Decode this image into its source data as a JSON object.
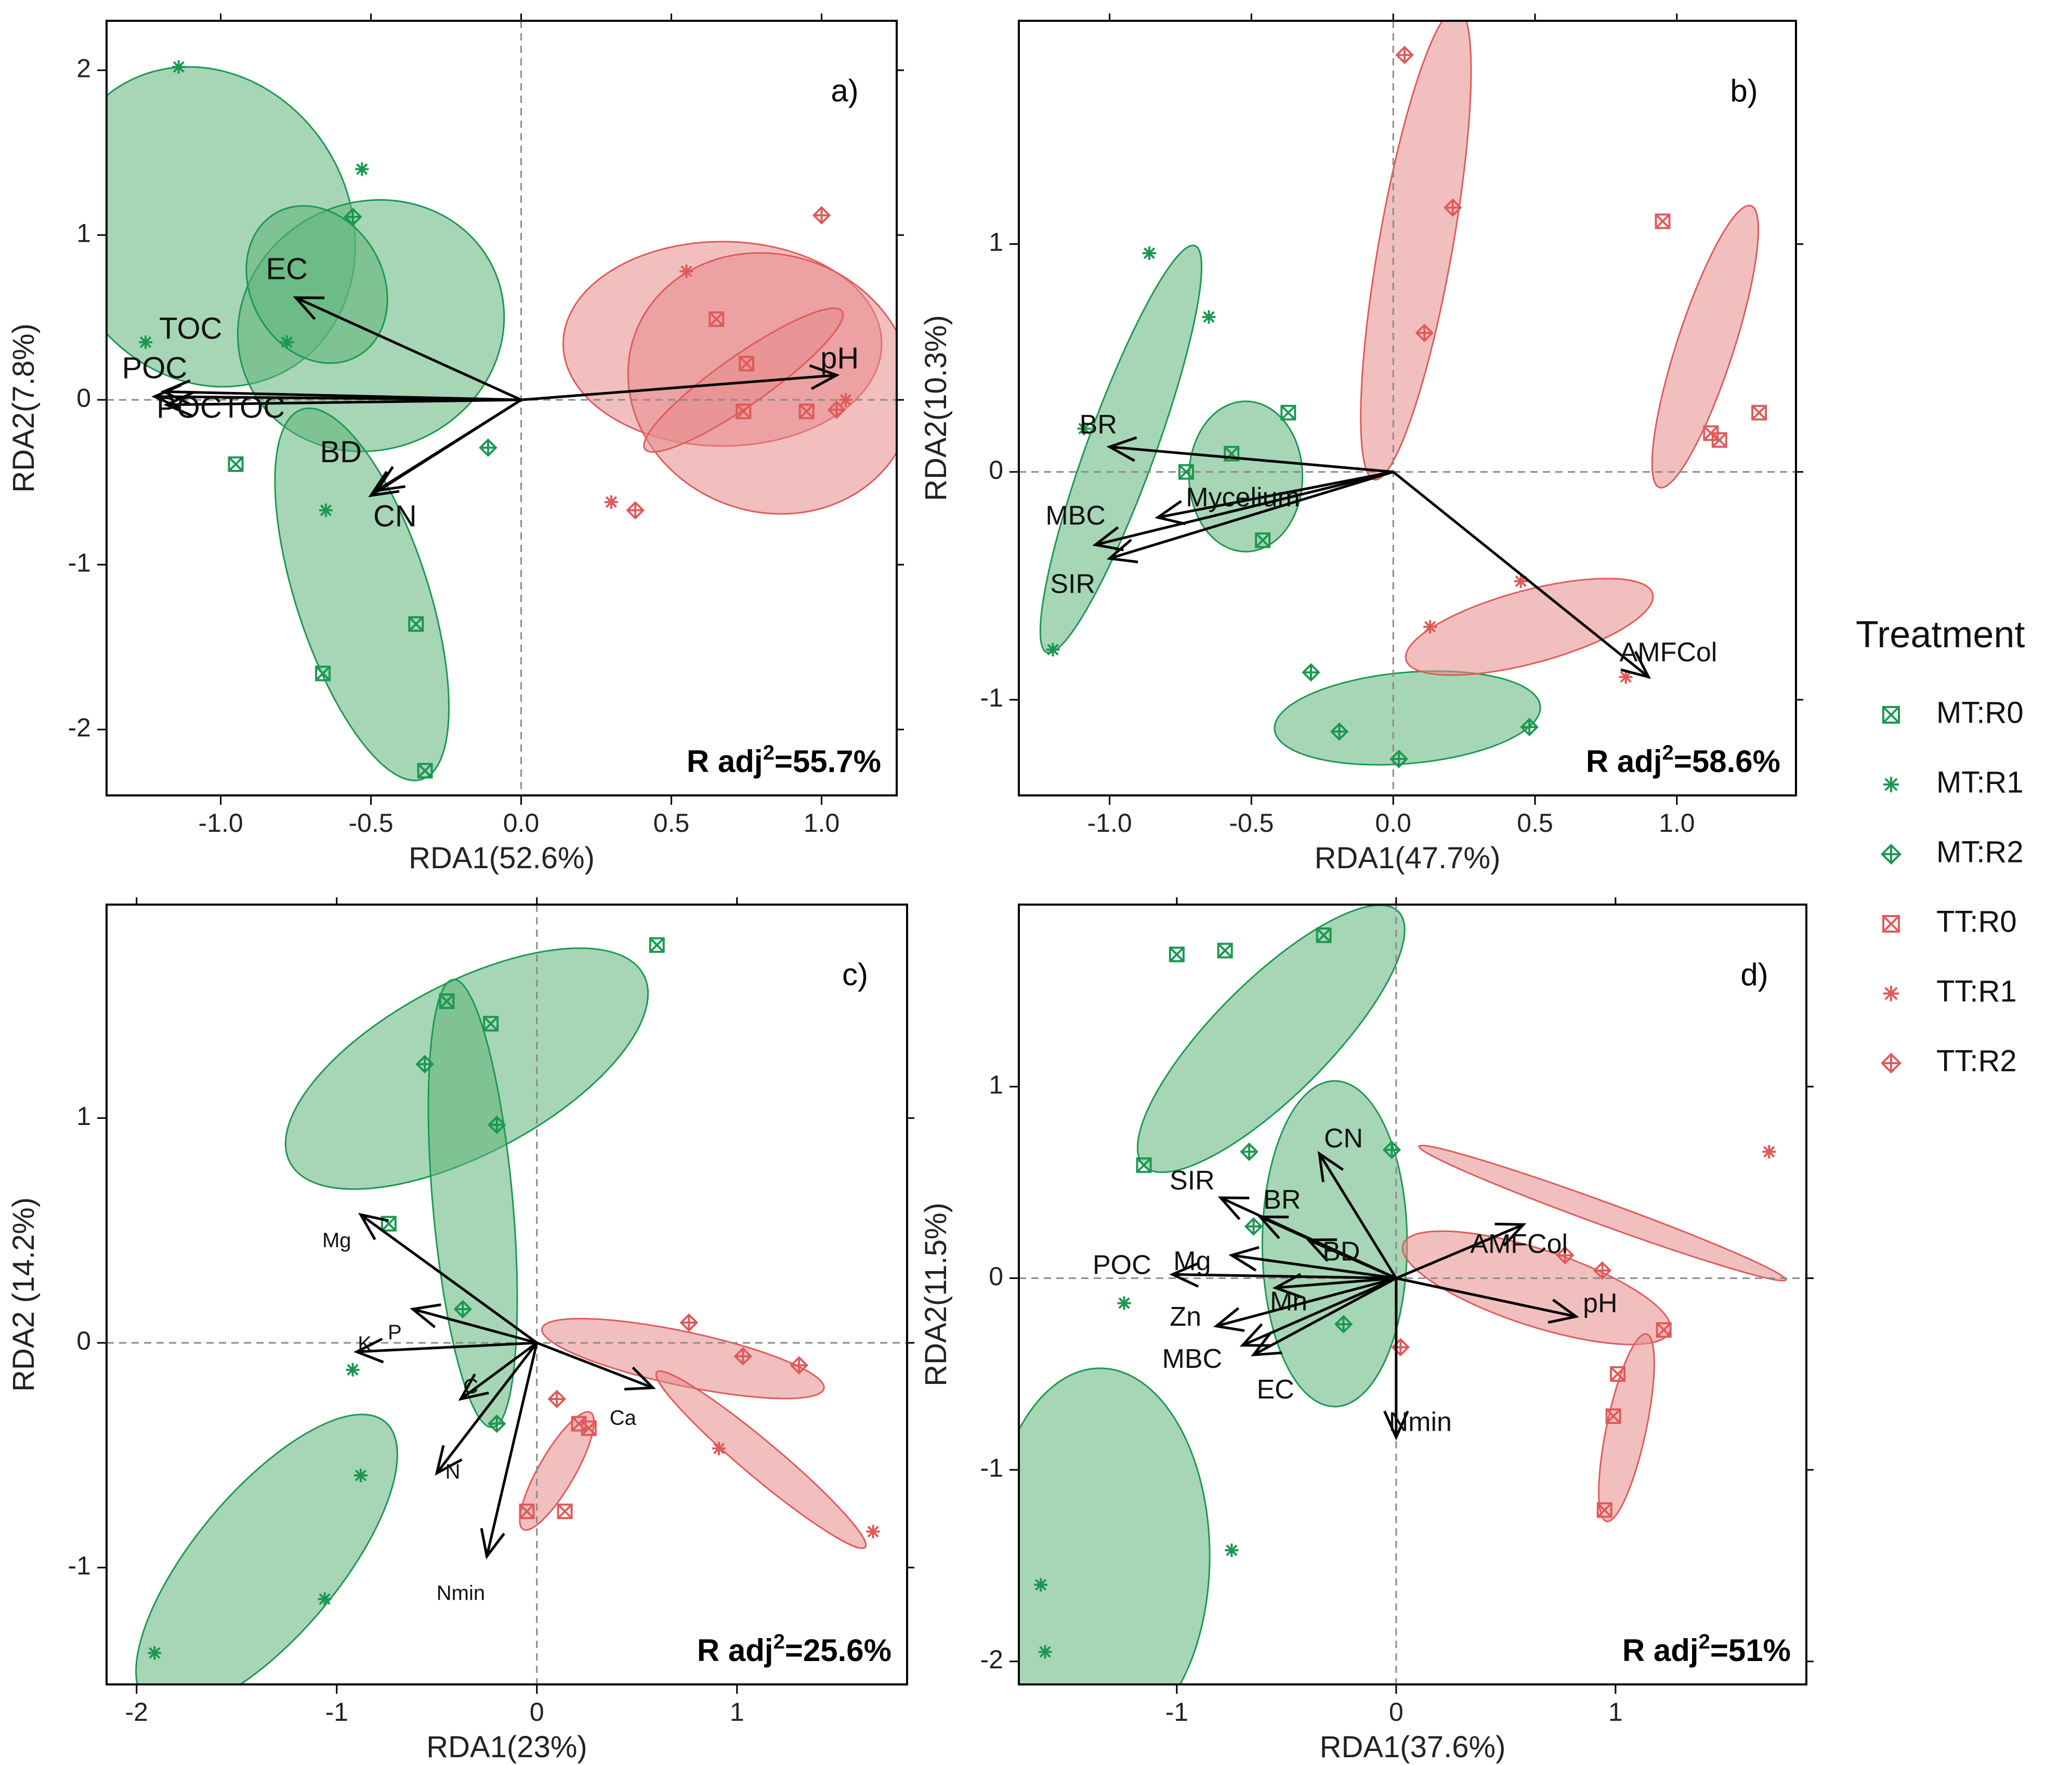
{
  "legend": {
    "title": "Treatment",
    "items": [
      {
        "label": "MT:R0",
        "color": "#1a9850",
        "marker": "boxx"
      },
      {
        "label": "MT:R1",
        "color": "#1a9850",
        "marker": "star"
      },
      {
        "label": "MT:R2",
        "color": "#1a9850",
        "marker": "diamondplus"
      },
      {
        "label": "TT:R0",
        "color": "#e05a5a",
        "marker": "boxx"
      },
      {
        "label": "TT:R1",
        "color": "#e05a5a",
        "marker": "star"
      },
      {
        "label": "TT:R2",
        "color": "#e05a5a",
        "marker": "diamondplus"
      }
    ]
  },
  "colors": {
    "MT": "#1a9850",
    "TT": "#e05a5a",
    "MT_fill": "#5fb57a",
    "TT_fill": "#e88a8a",
    "arrow": "#000000"
  },
  "chart_data": [
    {
      "panel": "a)",
      "type": "scatter",
      "xlabel": "RDA1(52.6%)",
      "ylabel": "RDA2(7.8%)",
      "radj": {
        "prefix": "R adj",
        "sup": "2",
        "value": "=55.7%"
      },
      "xlim": [
        -1.38,
        1.25
      ],
      "ylim": [
        -2.4,
        2.3
      ],
      "xticks": [
        -1.0,
        -0.5,
        0.0,
        0.5,
        1.0
      ],
      "xtick_labels": [
        "-1.0",
        "-0.5",
        "0.0",
        "0.5",
        "1.0"
      ],
      "yticks": [
        -2,
        -1,
        0,
        1,
        2
      ],
      "ytick_labels": [
        "-2",
        "-1",
        "0",
        "1",
        "2"
      ],
      "vector_font": 58,
      "ellipses": [
        {
          "group": "MT",
          "cx": -1.05,
          "cy": 1.05,
          "rx": 0.48,
          "ry": 1.0,
          "angle": -30
        },
        {
          "group": "MT",
          "cx": -0.5,
          "cy": 0.45,
          "rx": 0.45,
          "ry": 0.75,
          "angle": -25
        },
        {
          "group": "MT",
          "cx": -0.53,
          "cy": -1.18,
          "rx": 0.22,
          "ry": 1.18,
          "angle": -18
        },
        {
          "group": "MT",
          "cx": -0.68,
          "cy": 0.7,
          "rx": 0.22,
          "ry": 0.5,
          "angle": -30
        },
        {
          "group": "TT",
          "cx": 0.67,
          "cy": 0.34,
          "rx": 0.53,
          "ry": 0.62,
          "angle": 0
        },
        {
          "group": "TT",
          "cx": 0.83,
          "cy": 0.1,
          "rx": 0.48,
          "ry": 0.78,
          "angle": 20
        },
        {
          "group": "TT",
          "cx": 0.74,
          "cy": 0.12,
          "rx": 0.4,
          "ry": 0.15,
          "angle": -35
        }
      ],
      "points": [
        {
          "t": "MT:R1",
          "x": -1.14,
          "y": 2.02
        },
        {
          "t": "MT:R1",
          "x": -0.53,
          "y": 1.4
        },
        {
          "t": "MT:R2",
          "x": -0.56,
          "y": 1.11
        },
        {
          "t": "MT:R1",
          "x": -1.25,
          "y": 0.35
        },
        {
          "t": "MT:R1",
          "x": -0.78,
          "y": 0.35
        },
        {
          "t": "MT:R2",
          "x": -0.11,
          "y": -0.29
        },
        {
          "t": "MT:R0",
          "x": -0.95,
          "y": -0.39
        },
        {
          "t": "MT:R1",
          "x": -0.65,
          "y": -0.67
        },
        {
          "t": "MT:R0",
          "x": -0.35,
          "y": -1.36
        },
        {
          "t": "MT:R0",
          "x": -0.66,
          "y": -1.66
        },
        {
          "t": "MT:R0",
          "x": -0.32,
          "y": -2.25
        },
        {
          "t": "TT:R2",
          "x": 1.0,
          "y": 1.12
        },
        {
          "t": "TT:R1",
          "x": 0.55,
          "y": 0.78
        },
        {
          "t": "TT:R0",
          "x": 0.65,
          "y": 0.49
        },
        {
          "t": "TT:R0",
          "x": 0.75,
          "y": 0.22
        },
        {
          "t": "TT:R0",
          "x": 0.74,
          "y": -0.07
        },
        {
          "t": "TT:R0",
          "x": 0.95,
          "y": -0.07
        },
        {
          "t": "TT:R2",
          "x": 1.05,
          "y": -0.06
        },
        {
          "t": "TT:R1",
          "x": 1.08,
          "y": 0.0
        },
        {
          "t": "TT:R1",
          "x": 0.3,
          "y": -0.62
        },
        {
          "t": "TT:R2",
          "x": 0.38,
          "y": -0.67
        }
      ],
      "vectors": [
        {
          "label": "EC",
          "x": -0.75,
          "y": 0.62,
          "lx": -0.78,
          "ly": 0.78
        },
        {
          "label": "TOC",
          "x": -1.19,
          "y": 0.05,
          "lx": -1.1,
          "ly": 0.42
        },
        {
          "label": "POC",
          "x": -1.22,
          "y": 0.02,
          "lx": -1.22,
          "ly": 0.18
        },
        {
          "label": "POCTOC",
          "x": -1.18,
          "y": -0.03,
          "lx": -1.0,
          "ly": -0.06
        },
        {
          "label": "BD",
          "x": -0.48,
          "y": -0.55,
          "lx": -0.6,
          "ly": -0.33
        },
        {
          "label": "CN",
          "x": -0.5,
          "y": -0.58,
          "lx": -0.42,
          "ly": -0.72
        },
        {
          "label": "pH",
          "x": 1.05,
          "y": 0.15,
          "lx": 1.06,
          "ly": 0.24
        }
      ]
    },
    {
      "panel": "b)",
      "type": "scatter",
      "xlabel": "RDA1(47.7%)",
      "ylabel": "RDA2(10.3%)",
      "radj": {
        "prefix": "R adj",
        "sup": "2",
        "value": "=58.6%"
      },
      "xlim": [
        -1.32,
        1.42
      ],
      "ylim": [
        -1.42,
        1.98
      ],
      "xticks": [
        -1.0,
        -0.5,
        0.0,
        0.5,
        1.0
      ],
      "xtick_labels": [
        "-1.0",
        "-0.5",
        "0.0",
        "0.5",
        "1.0"
      ],
      "yticks": [
        -1,
        0,
        1
      ],
      "ytick_labels": [
        "-1",
        "0",
        "1"
      ],
      "vector_font": 52,
      "ellipses": [
        {
          "group": "MT",
          "cx": -0.96,
          "cy": 0.1,
          "rx": 0.12,
          "ry": 0.95,
          "angle": 20
        },
        {
          "group": "MT",
          "cx": -0.52,
          "cy": -0.02,
          "rx": 0.2,
          "ry": 0.33,
          "angle": 0
        },
        {
          "group": "MT",
          "cx": 0.05,
          "cy": -1.08,
          "rx": 0.47,
          "ry": 0.2,
          "angle": -5
        },
        {
          "group": "TT",
          "cx": 0.08,
          "cy": 1.0,
          "rx": 0.13,
          "ry": 1.05,
          "angle": 10
        },
        {
          "group": "TT",
          "cx": 1.1,
          "cy": 0.55,
          "rx": 0.1,
          "ry": 0.65,
          "angle": 18
        },
        {
          "group": "TT",
          "cx": 0.48,
          "cy": -0.68,
          "rx": 0.45,
          "ry": 0.16,
          "angle": -15
        }
      ],
      "points": [
        {
          "t": "MT:R1",
          "x": -0.86,
          "y": 0.96
        },
        {
          "t": "MT:R1",
          "x": -0.65,
          "y": 0.68
        },
        {
          "t": "MT:R1",
          "x": -1.09,
          "y": 0.19
        },
        {
          "t": "MT:R1",
          "x": -1.2,
          "y": -0.78
        },
        {
          "t": "MT:R0",
          "x": -0.37,
          "y": 0.26
        },
        {
          "t": "MT:R0",
          "x": -0.57,
          "y": 0.08
        },
        {
          "t": "MT:R0",
          "x": -0.73,
          "y": 0.0
        },
        {
          "t": "MT:R0",
          "x": -0.46,
          "y": -0.3
        },
        {
          "t": "MT:R2",
          "x": -0.29,
          "y": -0.88
        },
        {
          "t": "MT:R2",
          "x": -0.19,
          "y": -1.14
        },
        {
          "t": "MT:R2",
          "x": 0.02,
          "y": -1.26
        },
        {
          "t": "MT:R2",
          "x": 0.48,
          "y": -1.12
        },
        {
          "t": "TT:R2",
          "x": 0.04,
          "y": 1.83
        },
        {
          "t": "TT:R2",
          "x": 0.21,
          "y": 1.16
        },
        {
          "t": "TT:R2",
          "x": 0.11,
          "y": 0.61
        },
        {
          "t": "TT:R0",
          "x": 0.95,
          "y": 1.1
        },
        {
          "t": "TT:R0",
          "x": 1.12,
          "y": 0.17
        },
        {
          "t": "TT:R0",
          "x": 1.15,
          "y": 0.14
        },
        {
          "t": "TT:R0",
          "x": 1.29,
          "y": 0.26
        },
        {
          "t": "TT:R1",
          "x": 0.45,
          "y": -0.48
        },
        {
          "t": "TT:R1",
          "x": 0.13,
          "y": -0.68
        },
        {
          "t": "TT:R1",
          "x": 0.82,
          "y": -0.9
        }
      ],
      "vectors": [
        {
          "label": "BR",
          "x": -1.0,
          "y": 0.11,
          "lx": -1.04,
          "ly": 0.2
        },
        {
          "label": "Mycelium",
          "x": -0.83,
          "y": -0.2,
          "lx": -0.53,
          "ly": -0.12
        },
        {
          "label": "MBC",
          "x": -1.05,
          "y": -0.32,
          "lx": -1.12,
          "ly": -0.2
        },
        {
          "label": "SIR",
          "x": -1.0,
          "y": -0.38,
          "lx": -1.13,
          "ly": -0.5
        },
        {
          "label": "AMFCol",
          "x": 0.9,
          "y": -0.9,
          "lx": 0.97,
          "ly": -0.8
        }
      ]
    },
    {
      "panel": "c)",
      "type": "scatter",
      "xlabel": "RDA1(23%)",
      "ylabel": "RDA2 (14.2%)",
      "radj": {
        "prefix": "R adj",
        "sup": "2",
        "value": "=25.6%"
      },
      "xlim": [
        -2.15,
        1.85
      ],
      "ylim": [
        -1.52,
        1.95
      ],
      "xticks": [
        -2,
        -1,
        0,
        1
      ],
      "xtick_labels": [
        "-2",
        "-1",
        "0",
        "1"
      ],
      "yticks": [
        -1,
        0,
        1
      ],
      "ytick_labels": [
        "-1",
        "0",
        "1"
      ],
      "vector_font": 40,
      "ellipses": [
        {
          "group": "MT",
          "cx": -0.35,
          "cy": 1.22,
          "rx": 1.0,
          "ry": 0.38,
          "angle": -28
        },
        {
          "group": "MT",
          "cx": -0.32,
          "cy": 0.62,
          "rx": 0.2,
          "ry": 1.0,
          "angle": -5
        },
        {
          "group": "MT",
          "cx": -1.35,
          "cy": -0.98,
          "rx": 0.36,
          "ry": 0.82,
          "angle": 40
        },
        {
          "group": "TT",
          "cx": 0.73,
          "cy": -0.07,
          "rx": 0.72,
          "ry": 0.12,
          "angle": 12
        },
        {
          "group": "TT",
          "cx": 1.12,
          "cy": -0.52,
          "rx": 0.68,
          "ry": 0.08,
          "angle": 40
        },
        {
          "group": "TT",
          "cx": 0.1,
          "cy": -0.57,
          "rx": 0.09,
          "ry": 0.3,
          "angle": 30
        }
      ],
      "points": [
        {
          "t": "MT:R0",
          "x": 0.6,
          "y": 1.77
        },
        {
          "t": "MT:R0",
          "x": -0.45,
          "y": 1.52
        },
        {
          "t": "MT:R0",
          "x": -0.23,
          "y": 1.42
        },
        {
          "t": "MT:R2",
          "x": -0.56,
          "y": 1.24
        },
        {
          "t": "MT:R2",
          "x": -0.2,
          "y": 0.97
        },
        {
          "t": "MT:R0",
          "x": -0.74,
          "y": 0.53
        },
        {
          "t": "MT:R2",
          "x": -0.37,
          "y": 0.15
        },
        {
          "t": "MT:R2",
          "x": -0.2,
          "y": -0.36
        },
        {
          "t": "MT:R1",
          "x": -0.92,
          "y": -0.12
        },
        {
          "t": "MT:R1",
          "x": -0.88,
          "y": -0.59
        },
        {
          "t": "MT:R1",
          "x": -1.06,
          "y": -1.14
        },
        {
          "t": "MT:R1",
          "x": -1.91,
          "y": -1.38
        },
        {
          "t": "TT:R2",
          "x": 0.76,
          "y": 0.09
        },
        {
          "t": "TT:R2",
          "x": 1.31,
          "y": -0.1
        },
        {
          "t": "TT:R2",
          "x": 1.03,
          "y": -0.06
        },
        {
          "t": "TT:R2",
          "x": 0.1,
          "y": -0.25
        },
        {
          "t": "TT:R1",
          "x": 0.91,
          "y": -0.47
        },
        {
          "t": "TT:R1",
          "x": 1.68,
          "y": -0.84
        },
        {
          "t": "TT:R0",
          "x": 0.21,
          "y": -0.36
        },
        {
          "t": "TT:R0",
          "x": 0.26,
          "y": -0.38
        },
        {
          "t": "TT:R0",
          "x": 0.14,
          "y": -0.75
        },
        {
          "t": "TT:R0",
          "x": -0.05,
          "y": -0.75
        }
      ],
      "vectors": [
        {
          "label": "Mg",
          "x": -0.88,
          "y": 0.57,
          "lx": -1.0,
          "ly": 0.45
        },
        {
          "label": "P",
          "x": -0.62,
          "y": 0.15,
          "lx": -0.71,
          "ly": 0.04
        },
        {
          "label": "K",
          "x": -0.9,
          "y": -0.04,
          "lx": -0.86,
          "ly": -0.01
        },
        {
          "label": "C",
          "x": -0.38,
          "y": -0.25,
          "lx": -0.33,
          "ly": -0.2
        },
        {
          "label": "N",
          "x": -0.5,
          "y": -0.58,
          "lx": -0.42,
          "ly": -0.58
        },
        {
          "label": "Nmin",
          "x": -0.25,
          "y": -0.95,
          "lx": -0.38,
          "ly": -1.12
        },
        {
          "label": "Ca",
          "x": 0.58,
          "y": -0.2,
          "lx": 0.43,
          "ly": -0.34
        }
      ]
    },
    {
      "panel": "d)",
      "type": "scatter",
      "xlabel": "RDA1(37.6%)",
      "ylabel": "RDA2(11.5%)",
      "radj": {
        "prefix": "R adj",
        "sup": "2",
        "value": "=51%"
      },
      "xlim": [
        -1.72,
        1.87
      ],
      "ylim": [
        -2.12,
        1.95
      ],
      "xticks": [
        -1,
        0,
        1
      ],
      "xtick_labels": [
        "-1",
        "0",
        "1"
      ],
      "yticks": [
        -2,
        -1,
        0,
        1
      ],
      "ytick_labels": [
        "-2",
        "-1",
        "0",
        "1"
      ],
      "vector_font": 52,
      "ellipses": [
        {
          "group": "MT",
          "cx": -0.57,
          "cy": 1.25,
          "rx": 0.82,
          "ry": 0.3,
          "angle": -45
        },
        {
          "group": "MT",
          "cx": -0.28,
          "cy": 0.18,
          "rx": 0.33,
          "ry": 0.85,
          "angle": 0
        },
        {
          "group": "MT",
          "cx": -1.35,
          "cy": -1.45,
          "rx": 0.5,
          "ry": 0.98,
          "angle": 0
        },
        {
          "group": "TT",
          "cx": 0.94,
          "cy": 0.34,
          "rx": 0.89,
          "ry": 0.06,
          "angle": 20
        },
        {
          "group": "TT",
          "cx": 0.64,
          "cy": -0.05,
          "rx": 0.64,
          "ry": 0.2,
          "angle": 18
        },
        {
          "group": "TT",
          "cx": 1.05,
          "cy": -0.78,
          "rx": 0.09,
          "ry": 0.5,
          "angle": 12
        }
      ],
      "points": [
        {
          "t": "MT:R0",
          "x": -1.0,
          "y": 1.69
        },
        {
          "t": "MT:R0",
          "x": -0.78,
          "y": 1.71
        },
        {
          "t": "MT:R0",
          "x": -0.33,
          "y": 1.79
        },
        {
          "t": "MT:R0",
          "x": -1.15,
          "y": 0.59
        },
        {
          "t": "MT:R2",
          "x": -0.67,
          "y": 0.66
        },
        {
          "t": "MT:R2",
          "x": -0.02,
          "y": 0.67
        },
        {
          "t": "MT:R2",
          "x": -0.65,
          "y": 0.27
        },
        {
          "t": "MT:R2",
          "x": -0.24,
          "y": -0.24
        },
        {
          "t": "MT:R1",
          "x": -1.24,
          "y": -0.13
        },
        {
          "t": "MT:R1",
          "x": -0.75,
          "y": -1.42
        },
        {
          "t": "MT:R1",
          "x": -1.62,
          "y": -1.6
        },
        {
          "t": "MT:R1",
          "x": -1.6,
          "y": -1.95
        },
        {
          "t": "TT:R1",
          "x": 1.7,
          "y": 0.66
        },
        {
          "t": "TT:R2",
          "x": 0.77,
          "y": 0.12
        },
        {
          "t": "TT:R2",
          "x": 0.94,
          "y": 0.04
        },
        {
          "t": "TT:R2",
          "x": 0.02,
          "y": -0.36
        },
        {
          "t": "TT:R0",
          "x": 1.22,
          "y": -0.27
        },
        {
          "t": "TT:R0",
          "x": 1.01,
          "y": -0.5
        },
        {
          "t": "TT:R0",
          "x": 0.99,
          "y": -0.72
        },
        {
          "t": "TT:R0",
          "x": 0.95,
          "y": -1.21
        }
      ],
      "vectors": [
        {
          "label": "CN",
          "x": -0.35,
          "y": 0.65,
          "lx": -0.24,
          "ly": 0.72
        },
        {
          "label": "SIR",
          "x": -0.8,
          "y": 0.42,
          "lx": -0.93,
          "ly": 0.5
        },
        {
          "label": "BR",
          "x": -0.62,
          "y": 0.32,
          "lx": -0.52,
          "ly": 0.4
        },
        {
          "label": "BD",
          "x": -0.4,
          "y": 0.2,
          "lx": -0.25,
          "ly": 0.13
        },
        {
          "label": "Mg",
          "x": -0.75,
          "y": 0.12,
          "lx": -0.93,
          "ly": 0.08
        },
        {
          "label": "POC",
          "x": -1.02,
          "y": 0.02,
          "lx": -1.25,
          "ly": 0.06
        },
        {
          "label": "Mn",
          "x": -0.55,
          "y": -0.05,
          "lx": -0.49,
          "ly": -0.13
        },
        {
          "label": "Zn",
          "x": -0.82,
          "y": -0.25,
          "lx": -0.96,
          "ly": -0.21
        },
        {
          "label": "MBC",
          "x": -0.7,
          "y": -0.35,
          "lx": -0.93,
          "ly": -0.43
        },
        {
          "label": "EC",
          "x": -0.65,
          "y": -0.4,
          "lx": -0.55,
          "ly": -0.59
        },
        {
          "label": "AMFCol",
          "x": 0.58,
          "y": 0.28,
          "lx": 0.56,
          "ly": 0.17
        },
        {
          "label": "pH",
          "x": 0.82,
          "y": -0.2,
          "lx": 0.93,
          "ly": -0.14
        },
        {
          "label": "Nmin",
          "x": 0.0,
          "y": -0.83,
          "lx": 0.11,
          "ly": -0.76
        }
      ]
    }
  ]
}
